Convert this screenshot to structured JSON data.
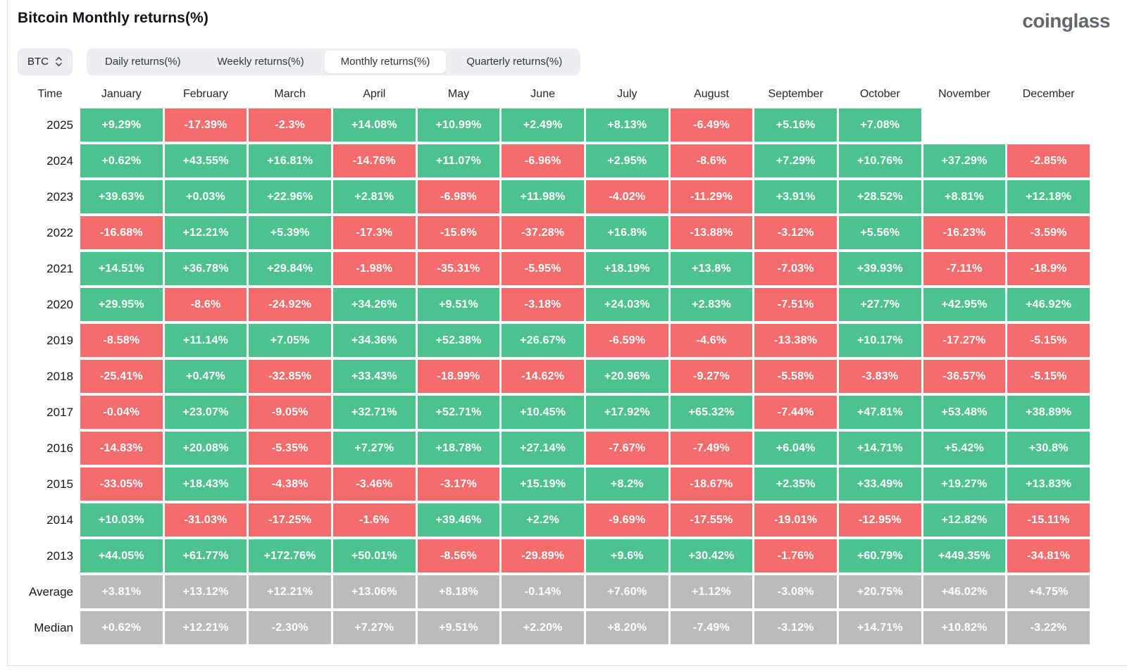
{
  "header": {
    "title": "Bitcoin Monthly returns(%)",
    "logo": "coinglass"
  },
  "controls": {
    "symbol": "BTC",
    "tabs": [
      "Daily returns(%)",
      "Weekly returns(%)",
      "Monthly returns(%)",
      "Quarterly returns(%)"
    ],
    "active_tab": "Monthly returns(%)"
  },
  "colors": {
    "positive": "#4DC28E",
    "negative": "#F56C6C",
    "neutral": "#BBBBBB",
    "chip_bar_bg": "#ECEEF1",
    "active_tab_bg": "#FFFFFF",
    "logo": "#5F6771"
  },
  "color_legend": {
    "g": "positive-green",
    "r": "negative-red",
    "n": "neutral-gray",
    "e": "empty"
  },
  "table": {
    "columns": [
      "Time",
      "January",
      "February",
      "March",
      "April",
      "May",
      "June",
      "July",
      "August",
      "September",
      "October",
      "November",
      "December"
    ],
    "rows": [
      {
        "label": "2025",
        "cells": [
          [
            "+9.29%",
            "g"
          ],
          [
            "-17.39%",
            "r"
          ],
          [
            "-2.3%",
            "r"
          ],
          [
            "+14.08%",
            "g"
          ],
          [
            "+10.99%",
            "g"
          ],
          [
            "+2.49%",
            "g"
          ],
          [
            "+8.13%",
            "g"
          ],
          [
            "-6.49%",
            "r"
          ],
          [
            "+5.16%",
            "g"
          ],
          [
            "+7.08%",
            "g"
          ],
          [
            "",
            "e"
          ],
          [
            "",
            "e"
          ]
        ]
      },
      {
        "label": "2024",
        "cells": [
          [
            "+0.62%",
            "g"
          ],
          [
            "+43.55%",
            "g"
          ],
          [
            "+16.81%",
            "g"
          ],
          [
            "-14.76%",
            "r"
          ],
          [
            "+11.07%",
            "g"
          ],
          [
            "-6.96%",
            "r"
          ],
          [
            "+2.95%",
            "g"
          ],
          [
            "-8.6%",
            "r"
          ],
          [
            "+7.29%",
            "g"
          ],
          [
            "+10.76%",
            "g"
          ],
          [
            "+37.29%",
            "g"
          ],
          [
            "-2.85%",
            "r"
          ]
        ]
      },
      {
        "label": "2023",
        "cells": [
          [
            "+39.63%",
            "g"
          ],
          [
            "+0.03%",
            "g"
          ],
          [
            "+22.96%",
            "g"
          ],
          [
            "+2.81%",
            "g"
          ],
          [
            "-6.98%",
            "r"
          ],
          [
            "+11.98%",
            "g"
          ],
          [
            "-4.02%",
            "r"
          ],
          [
            "-11.29%",
            "r"
          ],
          [
            "+3.91%",
            "g"
          ],
          [
            "+28.52%",
            "g"
          ],
          [
            "+8.81%",
            "g"
          ],
          [
            "+12.18%",
            "g"
          ]
        ]
      },
      {
        "label": "2022",
        "cells": [
          [
            "-16.68%",
            "r"
          ],
          [
            "+12.21%",
            "g"
          ],
          [
            "+5.39%",
            "g"
          ],
          [
            "-17.3%",
            "r"
          ],
          [
            "-15.6%",
            "r"
          ],
          [
            "-37.28%",
            "r"
          ],
          [
            "+16.8%",
            "g"
          ],
          [
            "-13.88%",
            "r"
          ],
          [
            "-3.12%",
            "r"
          ],
          [
            "+5.56%",
            "g"
          ],
          [
            "-16.23%",
            "r"
          ],
          [
            "-3.59%",
            "r"
          ]
        ]
      },
      {
        "label": "2021",
        "cells": [
          [
            "+14.51%",
            "g"
          ],
          [
            "+36.78%",
            "g"
          ],
          [
            "+29.84%",
            "g"
          ],
          [
            "-1.98%",
            "r"
          ],
          [
            "-35.31%",
            "r"
          ],
          [
            "-5.95%",
            "r"
          ],
          [
            "+18.19%",
            "g"
          ],
          [
            "+13.8%",
            "g"
          ],
          [
            "-7.03%",
            "r"
          ],
          [
            "+39.93%",
            "g"
          ],
          [
            "-7.11%",
            "r"
          ],
          [
            "-18.9%",
            "r"
          ]
        ]
      },
      {
        "label": "2020",
        "cells": [
          [
            "+29.95%",
            "g"
          ],
          [
            "-8.6%",
            "r"
          ],
          [
            "-24.92%",
            "r"
          ],
          [
            "+34.26%",
            "g"
          ],
          [
            "+9.51%",
            "g"
          ],
          [
            "-3.18%",
            "r"
          ],
          [
            "+24.03%",
            "g"
          ],
          [
            "+2.83%",
            "g"
          ],
          [
            "-7.51%",
            "r"
          ],
          [
            "+27.7%",
            "g"
          ],
          [
            "+42.95%",
            "g"
          ],
          [
            "+46.92%",
            "g"
          ]
        ]
      },
      {
        "label": "2019",
        "cells": [
          [
            "-8.58%",
            "r"
          ],
          [
            "+11.14%",
            "g"
          ],
          [
            "+7.05%",
            "g"
          ],
          [
            "+34.36%",
            "g"
          ],
          [
            "+52.38%",
            "g"
          ],
          [
            "+26.67%",
            "g"
          ],
          [
            "-6.59%",
            "r"
          ],
          [
            "-4.6%",
            "r"
          ],
          [
            "-13.38%",
            "r"
          ],
          [
            "+10.17%",
            "g"
          ],
          [
            "-17.27%",
            "r"
          ],
          [
            "-5.15%",
            "r"
          ]
        ]
      },
      {
        "label": "2018",
        "cells": [
          [
            "-25.41%",
            "r"
          ],
          [
            "+0.47%",
            "g"
          ],
          [
            "-32.85%",
            "r"
          ],
          [
            "+33.43%",
            "g"
          ],
          [
            "-18.99%",
            "r"
          ],
          [
            "-14.62%",
            "r"
          ],
          [
            "+20.96%",
            "g"
          ],
          [
            "-9.27%",
            "r"
          ],
          [
            "-5.58%",
            "r"
          ],
          [
            "-3.83%",
            "r"
          ],
          [
            "-36.57%",
            "r"
          ],
          [
            "-5.15%",
            "r"
          ]
        ]
      },
      {
        "label": "2017",
        "cells": [
          [
            "-0.04%",
            "r"
          ],
          [
            "+23.07%",
            "g"
          ],
          [
            "-9.05%",
            "r"
          ],
          [
            "+32.71%",
            "g"
          ],
          [
            "+52.71%",
            "g"
          ],
          [
            "+10.45%",
            "g"
          ],
          [
            "+17.92%",
            "g"
          ],
          [
            "+65.32%",
            "g"
          ],
          [
            "-7.44%",
            "r"
          ],
          [
            "+47.81%",
            "g"
          ],
          [
            "+53.48%",
            "g"
          ],
          [
            "+38.89%",
            "g"
          ]
        ]
      },
      {
        "label": "2016",
        "cells": [
          [
            "-14.83%",
            "r"
          ],
          [
            "+20.08%",
            "g"
          ],
          [
            "-5.35%",
            "r"
          ],
          [
            "+7.27%",
            "g"
          ],
          [
            "+18.78%",
            "g"
          ],
          [
            "+27.14%",
            "g"
          ],
          [
            "-7.67%",
            "r"
          ],
          [
            "-7.49%",
            "r"
          ],
          [
            "+6.04%",
            "g"
          ],
          [
            "+14.71%",
            "g"
          ],
          [
            "+5.42%",
            "g"
          ],
          [
            "+30.8%",
            "g"
          ]
        ]
      },
      {
        "label": "2015",
        "cells": [
          [
            "-33.05%",
            "r"
          ],
          [
            "+18.43%",
            "g"
          ],
          [
            "-4.38%",
            "r"
          ],
          [
            "-3.46%",
            "r"
          ],
          [
            "-3.17%",
            "r"
          ],
          [
            "+15.19%",
            "g"
          ],
          [
            "+8.2%",
            "g"
          ],
          [
            "-18.67%",
            "r"
          ],
          [
            "+2.35%",
            "g"
          ],
          [
            "+33.49%",
            "g"
          ],
          [
            "+19.27%",
            "g"
          ],
          [
            "+13.83%",
            "g"
          ]
        ]
      },
      {
        "label": "2014",
        "cells": [
          [
            "+10.03%",
            "g"
          ],
          [
            "-31.03%",
            "r"
          ],
          [
            "-17.25%",
            "r"
          ],
          [
            "-1.6%",
            "r"
          ],
          [
            "+39.46%",
            "g"
          ],
          [
            "+2.2%",
            "g"
          ],
          [
            "-9.69%",
            "r"
          ],
          [
            "-17.55%",
            "r"
          ],
          [
            "-19.01%",
            "r"
          ],
          [
            "-12.95%",
            "r"
          ],
          [
            "+12.82%",
            "g"
          ],
          [
            "-15.11%",
            "r"
          ]
        ]
      },
      {
        "label": "2013",
        "cells": [
          [
            "+44.05%",
            "g"
          ],
          [
            "+61.77%",
            "g"
          ],
          [
            "+172.76%",
            "g"
          ],
          [
            "+50.01%",
            "g"
          ],
          [
            "-8.56%",
            "r"
          ],
          [
            "-29.89%",
            "r"
          ],
          [
            "+9.6%",
            "g"
          ],
          [
            "+30.42%",
            "g"
          ],
          [
            "-1.76%",
            "r"
          ],
          [
            "+60.79%",
            "g"
          ],
          [
            "+449.35%",
            "g"
          ],
          [
            "-34.81%",
            "r"
          ]
        ]
      },
      {
        "label": "Average",
        "cells": [
          [
            "+3.81%",
            "n"
          ],
          [
            "+13.12%",
            "n"
          ],
          [
            "+12.21%",
            "n"
          ],
          [
            "+13.06%",
            "n"
          ],
          [
            "+8.18%",
            "n"
          ],
          [
            "-0.14%",
            "n"
          ],
          [
            "+7.60%",
            "n"
          ],
          [
            "+1.12%",
            "n"
          ],
          [
            "-3.08%",
            "n"
          ],
          [
            "+20.75%",
            "n"
          ],
          [
            "+46.02%",
            "n"
          ],
          [
            "+4.75%",
            "n"
          ]
        ]
      },
      {
        "label": "Median",
        "cells": [
          [
            "+0.62%",
            "n"
          ],
          [
            "+12.21%",
            "n"
          ],
          [
            "-2.30%",
            "n"
          ],
          [
            "+7.27%",
            "n"
          ],
          [
            "+9.51%",
            "n"
          ],
          [
            "+2.20%",
            "n"
          ],
          [
            "+8.20%",
            "n"
          ],
          [
            "-7.49%",
            "n"
          ],
          [
            "-3.12%",
            "n"
          ],
          [
            "+14.71%",
            "n"
          ],
          [
            "+10.82%",
            "n"
          ],
          [
            "-3.22%",
            "n"
          ]
        ]
      }
    ]
  }
}
